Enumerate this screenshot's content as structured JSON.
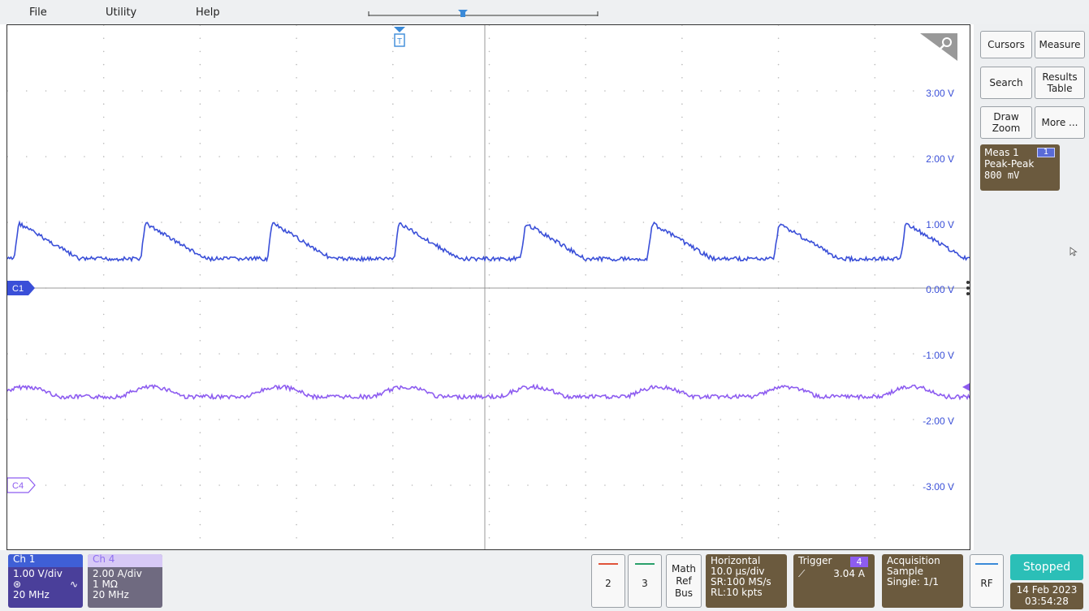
{
  "menu": {
    "file": "File",
    "utility": "Utility",
    "help": "Help"
  },
  "markers": {
    "trigger_marker": "T",
    "c1_label": "C1",
    "c4_label": "C4"
  },
  "graticule": {
    "v_labels": [
      "3.00 V",
      "2.00 V",
      "1.00 V",
      "0.00 V",
      "-1.00 V",
      "-2.00 V",
      "-3.00 V"
    ]
  },
  "right_panel": {
    "cursors": "Cursors",
    "measure": "Measure",
    "search": "Search",
    "results_table": "Results Table",
    "draw_zoom": "Draw Zoom",
    "more": "More ...",
    "meas": {
      "title": "Meas 1",
      "badge": "1",
      "type": "Peak-Peak",
      "value": "800 mV"
    }
  },
  "bottom": {
    "ch1": {
      "title": "Ch 1",
      "scale": "1.00 V/div",
      "bw": "20 MHz"
    },
    "ch4": {
      "title": "Ch 4",
      "scale": "2.00 A/div",
      "imp": "1 MΩ",
      "bw": "20 MHz"
    },
    "btn2": "2",
    "btn3": "3",
    "math": "Math",
    "ref": "Ref",
    "bus": "Bus",
    "horizontal": {
      "title": "Horizontal",
      "scale": "10.0 µs/div",
      "sr": "SR:100 MS/s",
      "rl": "RL:10 kpts"
    },
    "trigger": {
      "title": "Trigger",
      "badge": "4",
      "level": "3.04 A"
    },
    "acquisition": {
      "title": "Acquisition",
      "mode": "Sample",
      "single": "Single: 1/1"
    },
    "rf": "RF",
    "status": "Stopped",
    "date": "14 Feb 2023",
    "time": "03:54:28"
  },
  "colors": {
    "ch1": "#3a4fd8",
    "ch4": "#8d5cf0",
    "panel": "#6b5a3e",
    "stopped": "#2bbfb7"
  },
  "icons": [
    "zoom-icon",
    "trigger-icon",
    "cursor-icon",
    "kebab-icon",
    "rising-edge-icon"
  ]
}
